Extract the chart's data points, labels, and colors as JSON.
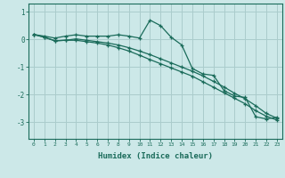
{
  "title": "",
  "xlabel": "Humidex (Indice chaleur)",
  "ylabel": "",
  "background_color": "#cce8e8",
  "grid_color": "#aacccc",
  "line_color": "#1a6b5a",
  "xlim": [
    -0.5,
    23.5
  ],
  "ylim": [
    -3.6,
    1.3
  ],
  "yticks": [
    -3,
    -2,
    -1,
    0,
    1
  ],
  "xticks": [
    0,
    1,
    2,
    3,
    4,
    5,
    6,
    7,
    8,
    9,
    10,
    11,
    12,
    13,
    14,
    15,
    16,
    17,
    18,
    19,
    20,
    21,
    22,
    23
  ],
  "series1_x": [
    0,
    1,
    2,
    3,
    4,
    5,
    6,
    7,
    8,
    9,
    10,
    11,
    12,
    13,
    14,
    15,
    16,
    17,
    18,
    19,
    20,
    21,
    22,
    23
  ],
  "series1_y": [
    0.18,
    0.12,
    0.05,
    0.12,
    0.17,
    0.12,
    0.12,
    0.12,
    0.17,
    0.12,
    0.05,
    0.7,
    0.5,
    0.08,
    -0.2,
    -1.05,
    -1.25,
    -1.3,
    -1.85,
    -2.05,
    -2.1,
    -2.8,
    -2.88,
    -2.82
  ],
  "series2_x": [
    0,
    1,
    2,
    3,
    4,
    5,
    6,
    7,
    8,
    9,
    10,
    11,
    12,
    13,
    14,
    15,
    16,
    17,
    18,
    19,
    20,
    21,
    22,
    23
  ],
  "series2_y": [
    0.18,
    0.08,
    -0.05,
    -0.03,
    0.02,
    -0.03,
    -0.08,
    -0.13,
    -0.2,
    -0.3,
    -0.42,
    -0.55,
    -0.7,
    -0.85,
    -1.0,
    -1.15,
    -1.32,
    -1.52,
    -1.72,
    -1.95,
    -2.15,
    -2.4,
    -2.68,
    -2.85
  ],
  "series3_x": [
    0,
    1,
    2,
    3,
    4,
    5,
    6,
    7,
    8,
    9,
    10,
    11,
    12,
    13,
    14,
    15,
    16,
    17,
    18,
    19,
    20,
    21,
    22,
    23
  ],
  "series3_y": [
    0.18,
    0.08,
    -0.05,
    -0.03,
    -0.03,
    -0.08,
    -0.13,
    -0.2,
    -0.3,
    -0.42,
    -0.57,
    -0.73,
    -0.88,
    -1.03,
    -1.18,
    -1.33,
    -1.53,
    -1.73,
    -1.93,
    -2.13,
    -2.33,
    -2.58,
    -2.78,
    -2.92
  ]
}
